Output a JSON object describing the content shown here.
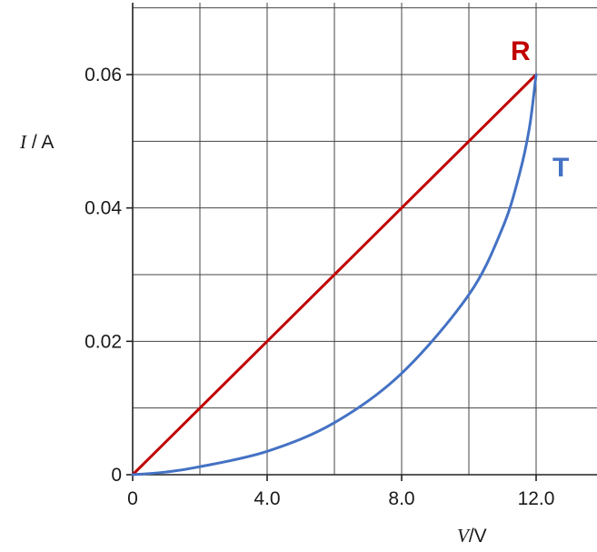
{
  "chart_data": {
    "type": "line",
    "xlabel": {
      "symbol": "V",
      "unit": "V"
    },
    "ylabel": {
      "symbol": "I",
      "unit": "A"
    },
    "xlim": [
      0,
      13.5
    ],
    "ylim": [
      0,
      0.07
    ],
    "x_ticks": [
      {
        "value": 0,
        "label": "0"
      },
      {
        "value": 4,
        "label": "4.0"
      },
      {
        "value": 8,
        "label": "8.0"
      },
      {
        "value": 12,
        "label": "12.0"
      }
    ],
    "y_ticks": [
      {
        "value": 0,
        "label": "0"
      },
      {
        "value": 0.02,
        "label": "0.02"
      },
      {
        "value": 0.04,
        "label": "0.04"
      },
      {
        "value": 0.06,
        "label": "0.06"
      }
    ],
    "grid": true,
    "grid_x_step": 2,
    "grid_y_step": 0.01,
    "series": [
      {
        "name": "R",
        "color": "#c00000",
        "x": [
          0,
          12
        ],
        "y": [
          0,
          0.06
        ]
      },
      {
        "name": "T",
        "color": "#4472c4",
        "x": [
          0,
          1,
          2,
          4,
          6,
          8,
          10,
          11,
          11.5,
          11.8,
          12
        ],
        "y": [
          0,
          0.0004,
          0.0012,
          0.0035,
          0.0078,
          0.0152,
          0.027,
          0.037,
          0.045,
          0.052,
          0.06
        ]
      }
    ]
  }
}
